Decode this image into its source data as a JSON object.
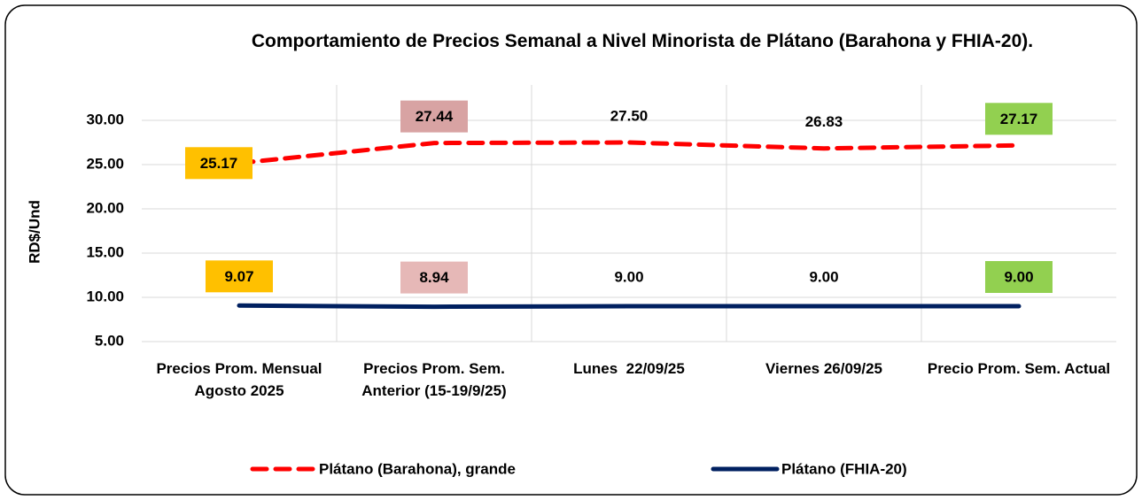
{
  "chart_data": {
    "type": "line",
    "title": "Comportamiento de Precios Semanal a Nivel Minorista de Plátano (Barahona y FHIA-20).",
    "y_label": "RD$/Und",
    "categories": [
      "Precios Prom. Mensual Agosto 2025",
      "Precios Prom. Sem. Anterior (15-19/9/25)",
      "Lunes  22/09/25",
      "Viernes 26/09/25",
      "Precio Prom. Sem. Actual"
    ],
    "series": [
      {
        "name": "Plátano (Barahona), grande",
        "color": "#ff0000",
        "dashed": true,
        "values": [
          25.17,
          27.44,
          27.5,
          26.83,
          27.17
        ],
        "value_labels": [
          "25.17",
          "27.44",
          "27.50",
          "26.83",
          "27.17"
        ],
        "label_colors": [
          "#ffc000",
          "#d8a3a3",
          null,
          null,
          "#92d050"
        ]
      },
      {
        "name": "Plátano (FHIA-20)",
        "color": "#002060",
        "dashed": false,
        "values": [
          9.07,
          8.94,
          9.0,
          9.0,
          9.0
        ],
        "value_labels": [
          "9.07",
          "8.94",
          "9.00",
          "9.00",
          "9.00"
        ],
        "label_colors": [
          "#ffc000",
          "#e6b8b7",
          null,
          null,
          "#92d050"
        ]
      }
    ],
    "ylim": [
      5,
      34
    ],
    "yticks": [
      {
        "value": 5,
        "label": "5.00"
      },
      {
        "value": 10,
        "label": "10.00"
      },
      {
        "value": 15,
        "label": "15.00"
      },
      {
        "value": 20,
        "label": "20.00"
      },
      {
        "value": 25,
        "label": "25.00"
      },
      {
        "value": 30,
        "label": "30.00"
      }
    ],
    "grid": true,
    "legend": "bottom"
  }
}
